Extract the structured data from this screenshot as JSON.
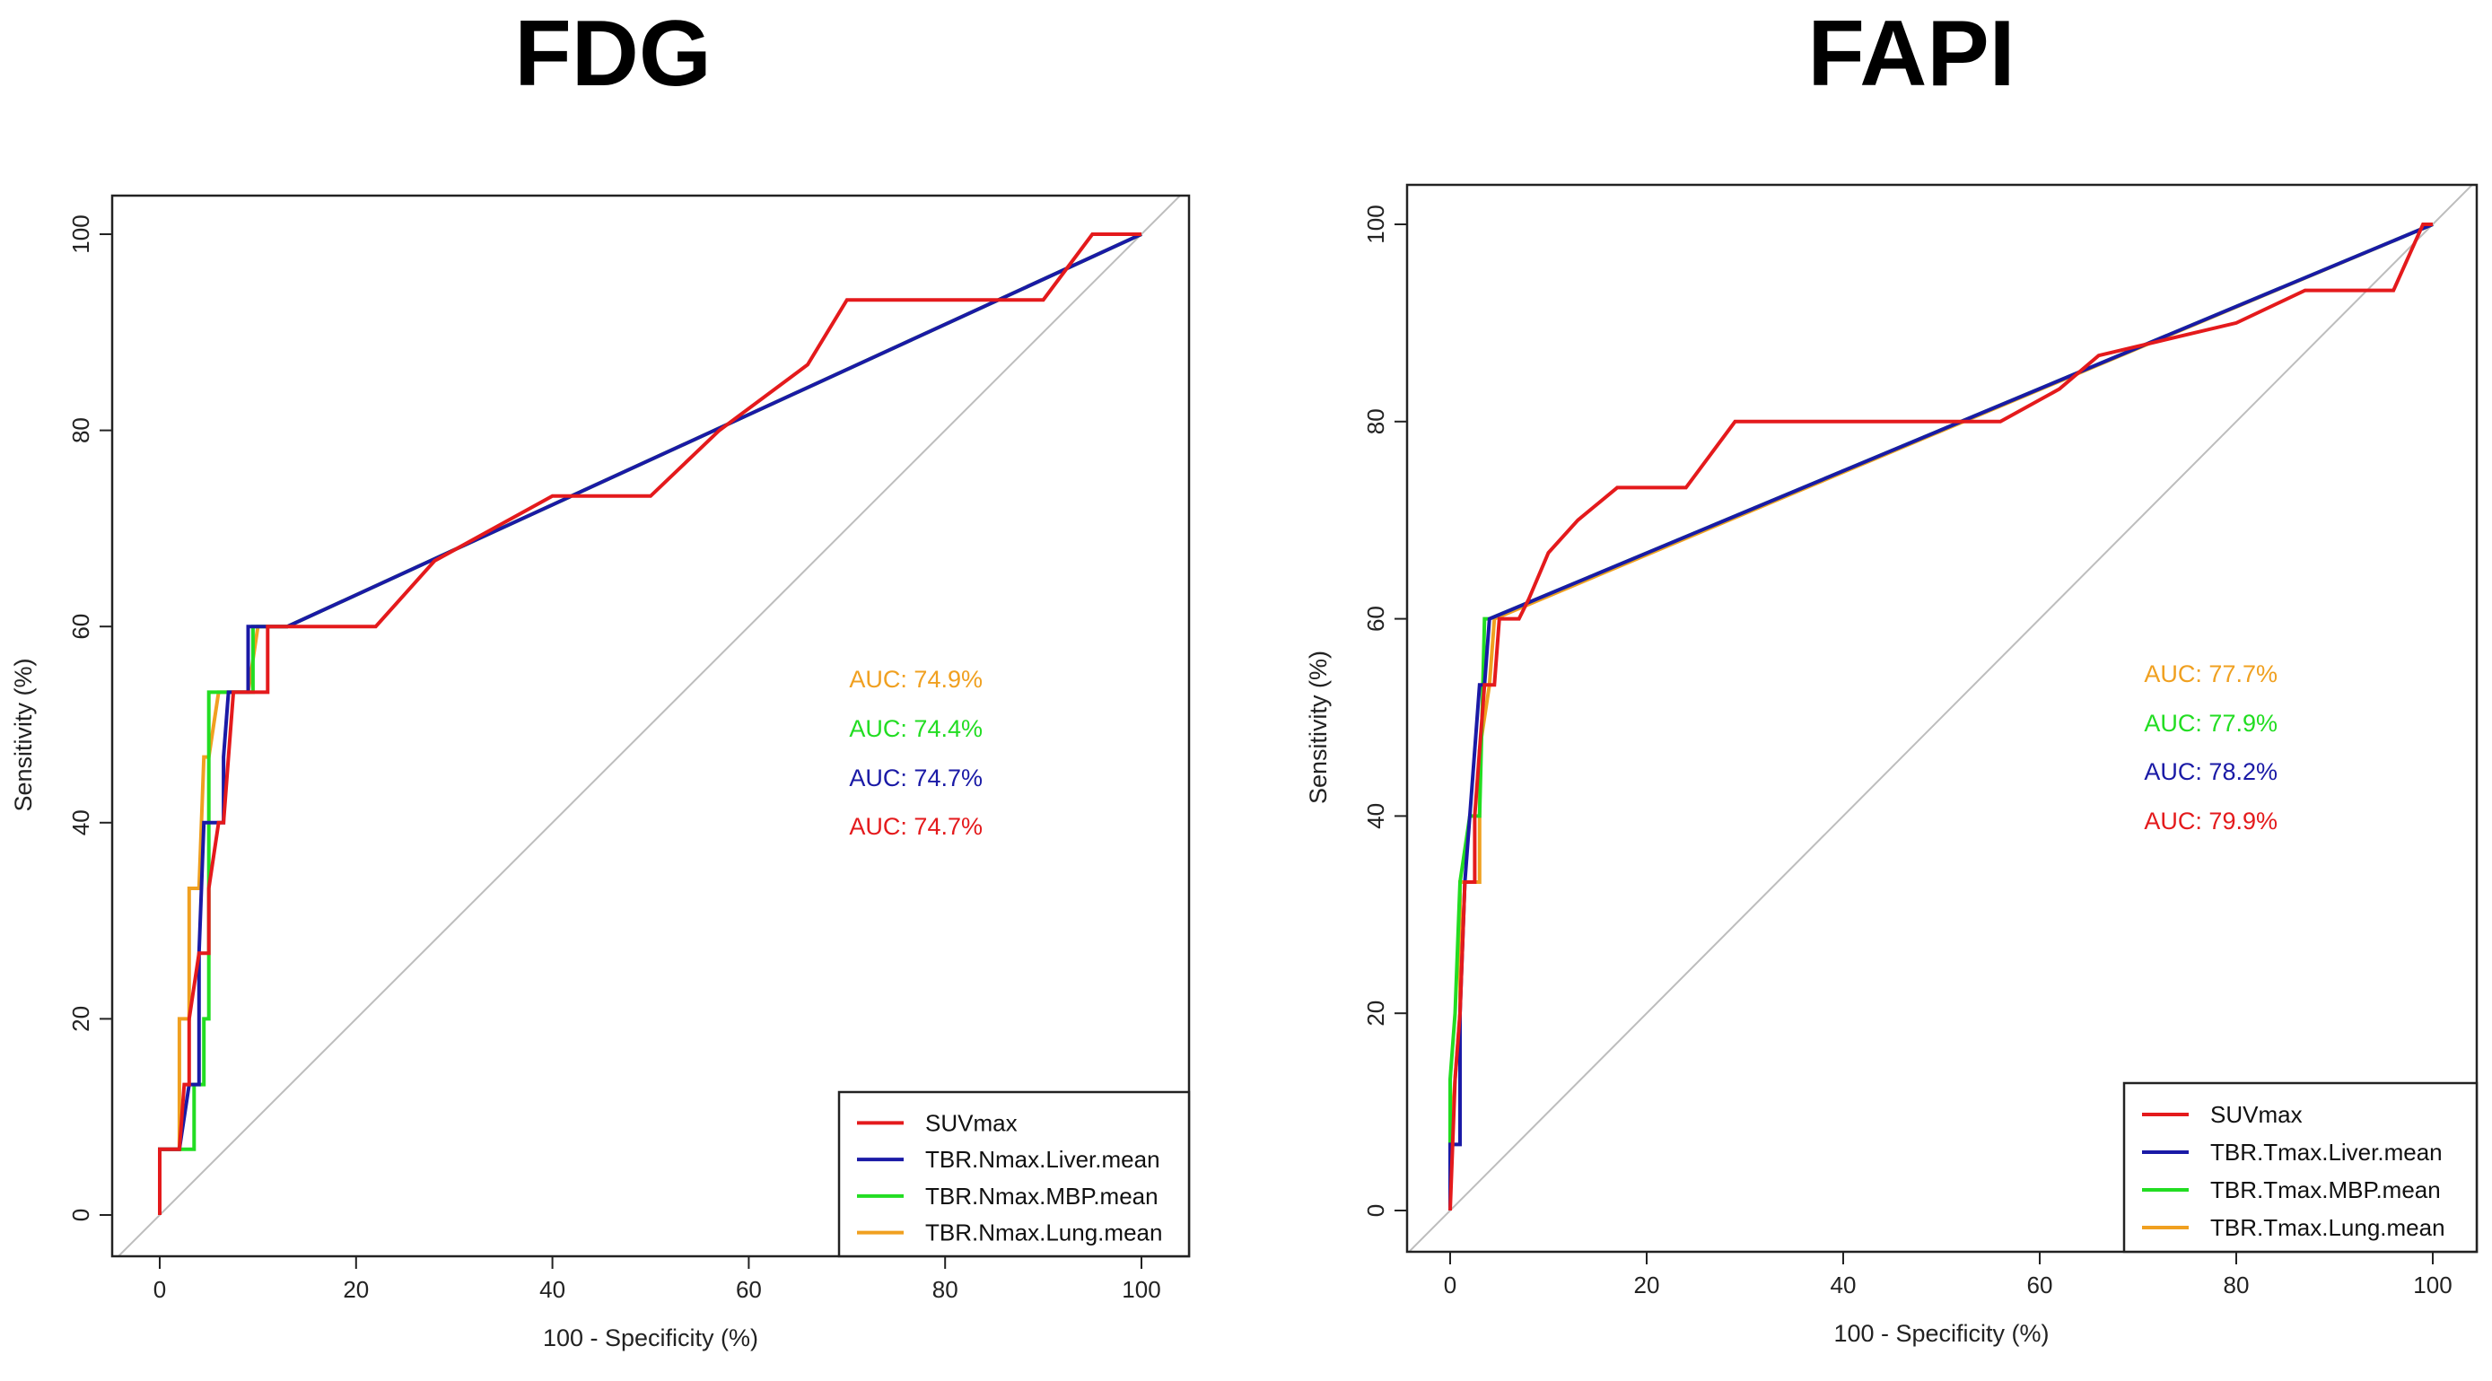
{
  "chart_data": [
    {
      "type": "line",
      "title": "FDG",
      "xlabel": "100 - Specificity (%)",
      "ylabel": "Sensitivity (%)",
      "xlim": [
        0,
        100
      ],
      "ylim": [
        0,
        100
      ],
      "xticks": [
        "0",
        "20",
        "40",
        "60",
        "80",
        "100"
      ],
      "yticks": [
        "0",
        "20",
        "40",
        "60",
        "80",
        "100"
      ],
      "reference_line": [
        [
          0,
          0
        ],
        [
          100,
          100
        ]
      ],
      "legend_position": "bottom-right",
      "series": [
        {
          "name": "SUVmax",
          "color": "#e41a1c",
          "auc": "AUC: 74.7%",
          "points": [
            [
              0,
              0
            ],
            [
              0,
              6.7
            ],
            [
              2,
              6.7
            ],
            [
              2.5,
              13.3
            ],
            [
              3,
              13.3
            ],
            [
              3,
              20
            ],
            [
              4,
              26.7
            ],
            [
              5,
              26.7
            ],
            [
              5,
              33.3
            ],
            [
              6,
              40
            ],
            [
              6.5,
              40
            ],
            [
              7,
              46.7
            ],
            [
              7.5,
              53.3
            ],
            [
              9,
              53.3
            ],
            [
              10,
              53.3
            ],
            [
              11,
              53.3
            ],
            [
              11,
              60
            ],
            [
              22,
              60
            ],
            [
              28,
              66.7
            ],
            [
              40,
              73.3
            ],
            [
              50,
              73.3
            ],
            [
              57,
              80
            ],
            [
              66,
              86.7
            ],
            [
              70,
              93.3
            ],
            [
              90,
              93.3
            ],
            [
              95,
              100
            ],
            [
              100,
              100
            ]
          ]
        },
        {
          "name": "TBR.Nmax.Liver.mean",
          "color": "#1a1aa6",
          "auc": "AUC: 74.7%",
          "points": [
            [
              0,
              0
            ],
            [
              0,
              6.7
            ],
            [
              2,
              6.7
            ],
            [
              3,
              13.3
            ],
            [
              4,
              13.3
            ],
            [
              4,
              26.7
            ],
            [
              4.5,
              40
            ],
            [
              5.5,
              40
            ],
            [
              6.5,
              40
            ],
            [
              6.5,
              46.7
            ],
            [
              7,
              53.3
            ],
            [
              9,
              53.3
            ],
            [
              9,
              60
            ],
            [
              13,
              60
            ],
            [
              100,
              100
            ]
          ]
        },
        {
          "name": "TBR.Nmax.MBP.mean",
          "color": "#22dd22",
          "auc": "AUC: 74.4%",
          "points": [
            [
              0,
              0
            ],
            [
              0,
              6.7
            ],
            [
              3.5,
              6.7
            ],
            [
              3.5,
              13.3
            ],
            [
              4.5,
              13.3
            ],
            [
              4.5,
              20
            ],
            [
              5,
              20
            ],
            [
              5,
              53.3
            ],
            [
              9.5,
              53.3
            ],
            [
              9.5,
              60
            ],
            [
              13,
              60
            ],
            [
              100,
              100
            ]
          ]
        },
        {
          "name": "TBR.Nmax.Lung.mean",
          "color": "#f0a020",
          "auc": "AUC: 74.9%",
          "points": [
            [
              0,
              0
            ],
            [
              0,
              6.7
            ],
            [
              2,
              6.7
            ],
            [
              2,
              20
            ],
            [
              3,
              20
            ],
            [
              3,
              33.3
            ],
            [
              4,
              33.3
            ],
            [
              4.5,
              46.7
            ],
            [
              5,
              46.7
            ],
            [
              6,
              53.3
            ],
            [
              9,
              53.3
            ],
            [
              10,
              60
            ],
            [
              13,
              60
            ],
            [
              100,
              100
            ]
          ]
        }
      ]
    },
    {
      "type": "line",
      "title": "FAPI",
      "xlabel": "100 - Specificity (%)",
      "ylabel": "Sensitivity (%)",
      "xlim": [
        0,
        100
      ],
      "ylim": [
        0,
        100
      ],
      "xticks": [
        "0",
        "20",
        "40",
        "60",
        "80",
        "100"
      ],
      "yticks": [
        "0",
        "20",
        "40",
        "60",
        "80",
        "100"
      ],
      "reference_line": [
        [
          0,
          0
        ],
        [
          100,
          100
        ]
      ],
      "legend_position": "bottom-right",
      "series": [
        {
          "name": "SUVmax",
          "color": "#e41a1c",
          "auc": "AUC: 79.9%",
          "points": [
            [
              0,
              0
            ],
            [
              0.5,
              13.3
            ],
            [
              1,
              20
            ],
            [
              1.5,
              33.3
            ],
            [
              2.5,
              33.3
            ],
            [
              2.5,
              40
            ],
            [
              3,
              46.7
            ],
            [
              3.5,
              53.3
            ],
            [
              4,
              53.3
            ],
            [
              4.5,
              53.3
            ],
            [
              5,
              60
            ],
            [
              7,
              60
            ],
            [
              8,
              62
            ],
            [
              10,
              66.7
            ],
            [
              13,
              70
            ],
            [
              17,
              73.3
            ],
            [
              24,
              73.3
            ],
            [
              29,
              80
            ],
            [
              51,
              80
            ],
            [
              56,
              80
            ],
            [
              62,
              83.3
            ],
            [
              66,
              86.7
            ],
            [
              80,
              90
            ],
            [
              87,
              93.3
            ],
            [
              96,
              93.3
            ],
            [
              99,
              100
            ],
            [
              100,
              100
            ]
          ]
        },
        {
          "name": "TBR.Tmax.Liver.mean",
          "color": "#1a1aa6",
          "auc": "AUC: 78.2%",
          "points": [
            [
              0,
              0
            ],
            [
              0,
              6.7
            ],
            [
              1,
              6.7
            ],
            [
              1,
              20
            ],
            [
              1.5,
              33.3
            ],
            [
              2,
              40
            ],
            [
              2.5,
              46.7
            ],
            [
              3,
              53.3
            ],
            [
              3.5,
              53.3
            ],
            [
              4,
              60
            ],
            [
              100,
              100
            ]
          ]
        },
        {
          "name": "TBR.Tmax.MBP.mean",
          "color": "#22dd22",
          "auc": "AUC: 77.9%",
          "points": [
            [
              0,
              0
            ],
            [
              0,
              13.3
            ],
            [
              0.5,
              20
            ],
            [
              1,
              33.3
            ],
            [
              2,
              40
            ],
            [
              3,
              40
            ],
            [
              3.5,
              60
            ],
            [
              4,
              60
            ],
            [
              100,
              100
            ]
          ]
        },
        {
          "name": "TBR.Tmax.Lung.mean",
          "color": "#f0a020",
          "auc": "AUC: 77.7%",
          "points": [
            [
              0,
              0
            ],
            [
              0,
              6.7
            ],
            [
              1,
              20
            ],
            [
              1,
              33.3
            ],
            [
              3,
              33.3
            ],
            [
              3,
              46.7
            ],
            [
              4,
              53.3
            ],
            [
              4.5,
              60
            ],
            [
              100,
              100
            ]
          ]
        }
      ]
    }
  ]
}
